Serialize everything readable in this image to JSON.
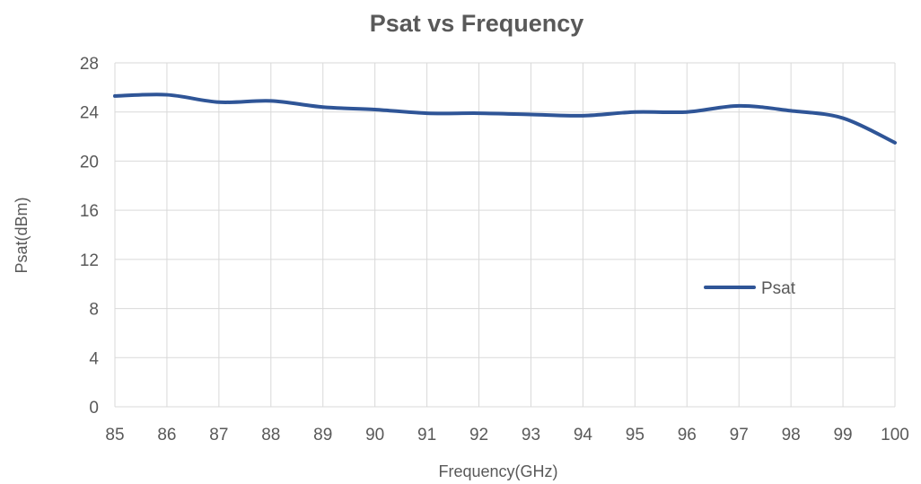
{
  "chart_data": {
    "type": "line",
    "title": "Psat vs Frequency",
    "xlabel": "Frequency(GHz)",
    "ylabel": "Psat(dBm)",
    "x": [
      85,
      86,
      87,
      88,
      89,
      90,
      91,
      92,
      93,
      94,
      95,
      96,
      97,
      98,
      99,
      100
    ],
    "x_tick_labels": [
      "85",
      "86",
      "87",
      "88",
      "89",
      "90",
      "91",
      "92",
      "93",
      "94",
      "95",
      "96",
      "97",
      "98",
      "99",
      "100"
    ],
    "y_tick_labels": [
      "0",
      "4",
      "8",
      "12",
      "16",
      "20",
      "24",
      "28"
    ],
    "xlim": [
      85,
      100
    ],
    "ylim": [
      0,
      28
    ],
    "y_ticks": [
      0,
      4,
      8,
      12,
      16,
      20,
      24,
      28
    ],
    "grid": true,
    "legend_position": "right",
    "series": [
      {
        "name": "Psat",
        "color": "#2F5597",
        "values": [
          25.3,
          25.4,
          24.8,
          24.9,
          24.4,
          24.2,
          23.9,
          23.9,
          23.8,
          23.7,
          24.0,
          24.0,
          24.5,
          24.1,
          23.5,
          21.5
        ]
      }
    ]
  }
}
